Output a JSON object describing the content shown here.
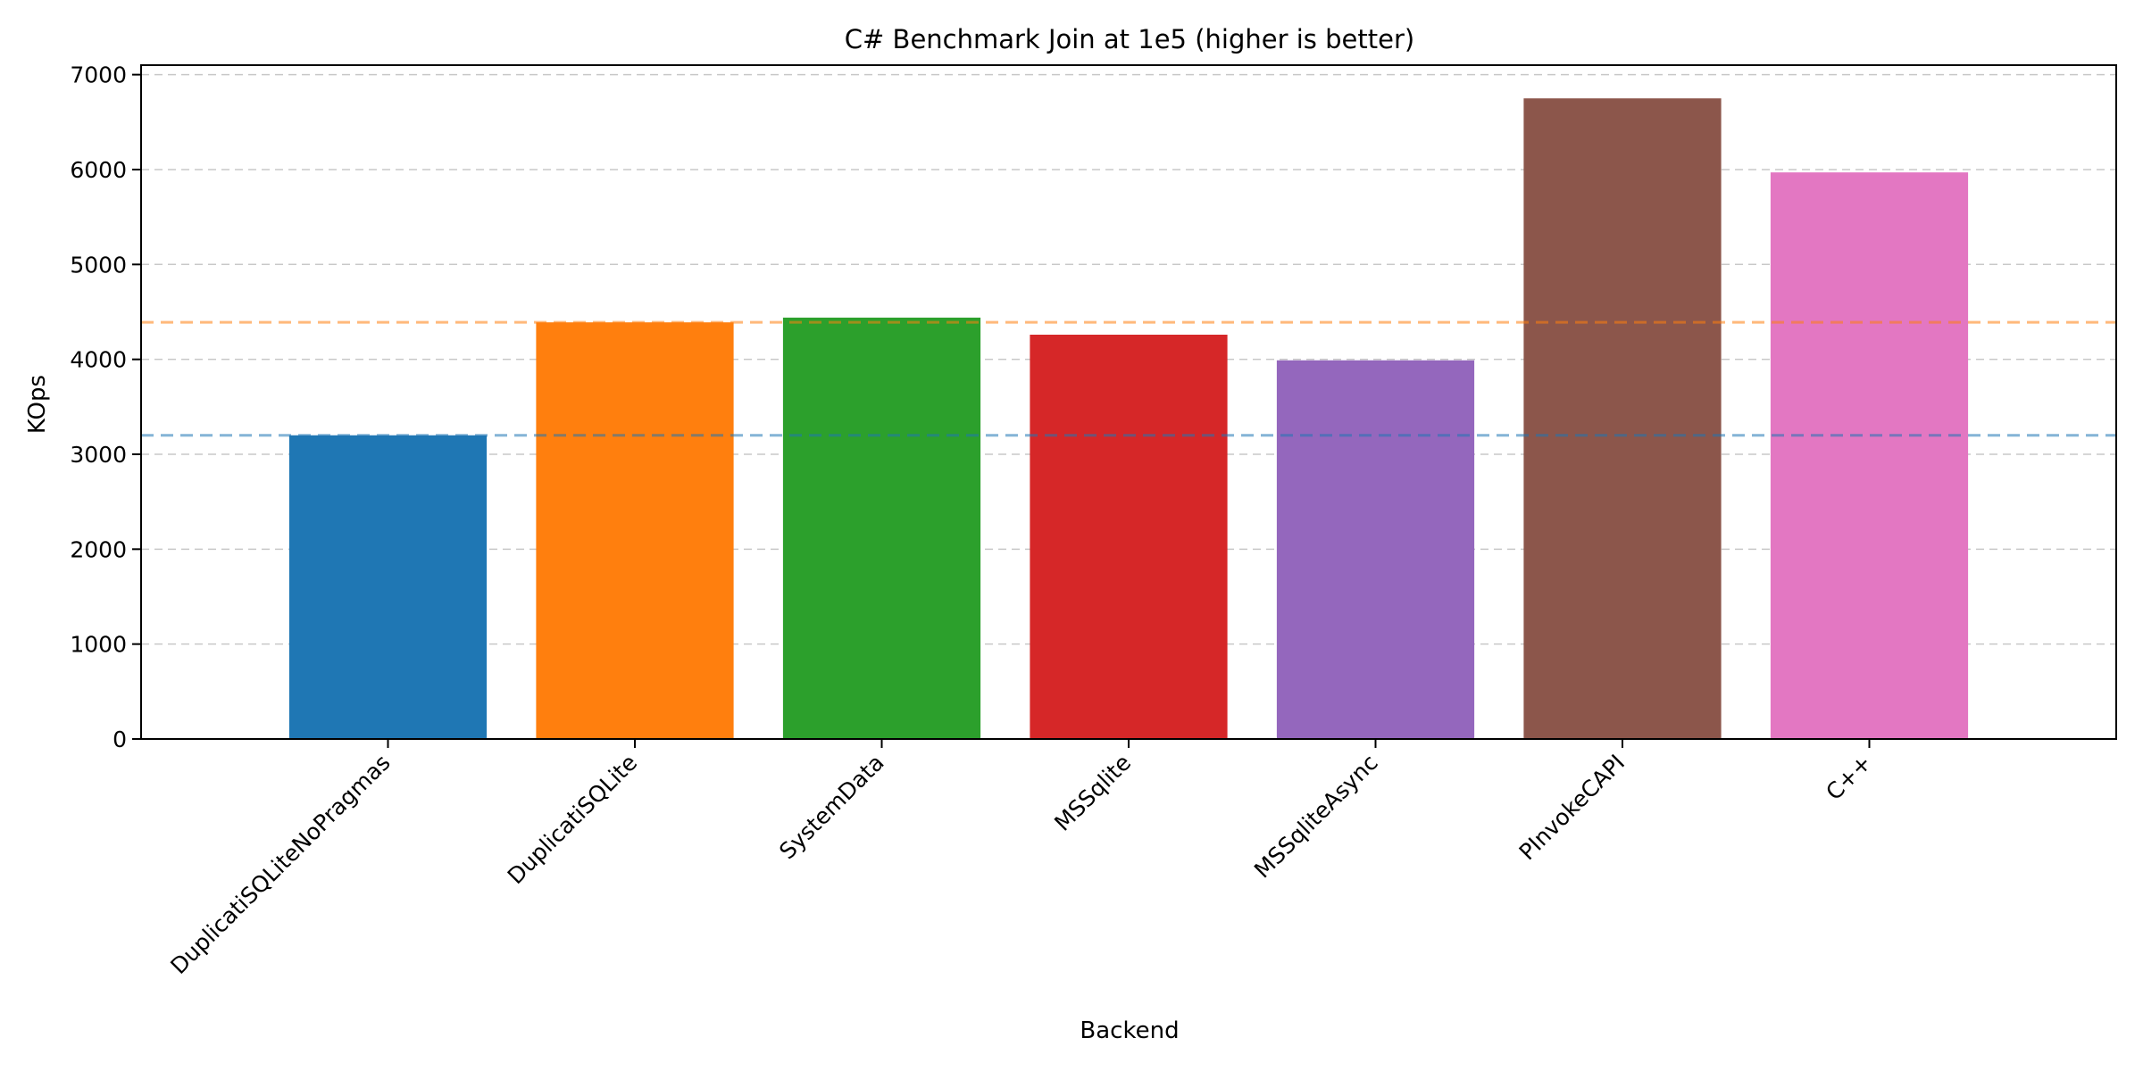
{
  "chart_data": {
    "type": "bar",
    "title": "C# Benchmark Join at 1e5 (higher is better)",
    "xlabel": "Backend",
    "ylabel": "KOps",
    "categories": [
      "DuplicatiSQLiteNoPragmas",
      "DuplicatiSQLite",
      "SystemData",
      "MSSqlite",
      "MSSqliteAsync",
      "PInvokeCAPI",
      "C++"
    ],
    "values": [
      3200,
      4390,
      4440,
      4260,
      3990,
      6750,
      5970
    ],
    "bar_colors": [
      "#1f77b4",
      "#ff7f0e",
      "#2ca02c",
      "#d62728",
      "#9467bd",
      "#8c564b",
      "#e377c2"
    ],
    "ylim": [
      0,
      7100
    ],
    "yticks": [
      0,
      1000,
      2000,
      3000,
      4000,
      5000,
      6000,
      7000
    ],
    "grid": "y, dashed",
    "reference_lines": [
      {
        "value": 3200,
        "color": "#1f77b4",
        "style": "dashed"
      },
      {
        "value": 4390,
        "color": "#ff7f0e",
        "style": "dashed"
      }
    ]
  }
}
